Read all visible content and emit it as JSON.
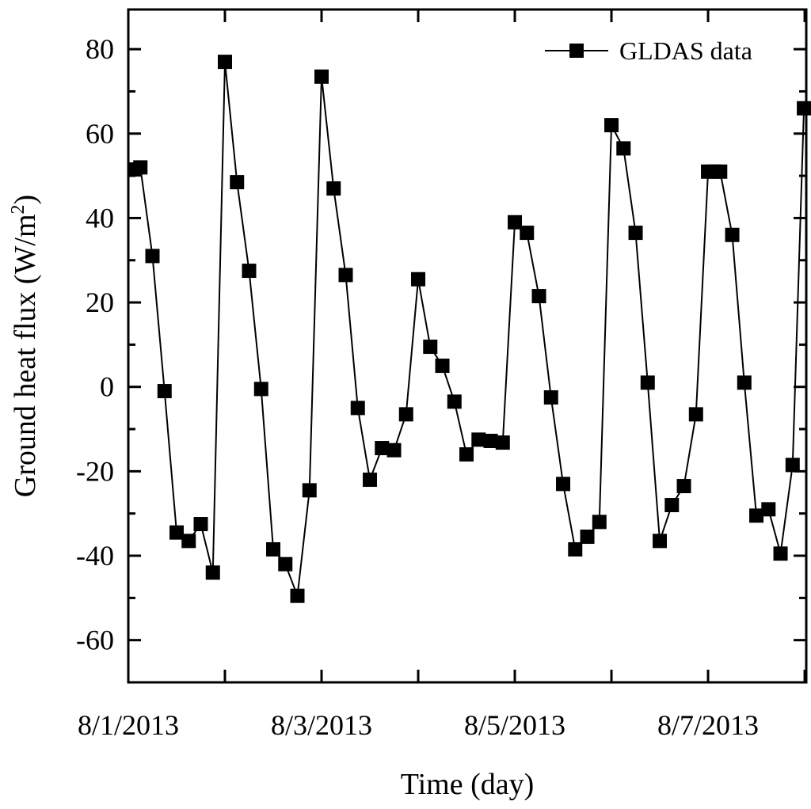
{
  "chart_data": {
    "type": "line",
    "xlabel": "Time (day)",
    "ylabel": {
      "text": "Ground heat flux (W/m",
      "sup": "2",
      "end": ")"
    },
    "x": [
      0.066,
      0.125,
      0.25,
      0.375,
      0.5,
      0.625,
      0.75,
      0.875,
      1.0,
      1.125,
      1.25,
      1.375,
      1.5,
      1.625,
      1.75,
      1.875,
      2.0,
      2.125,
      2.25,
      2.375,
      2.5,
      2.625,
      2.75,
      2.875,
      3.0,
      3.125,
      3.25,
      3.375,
      3.5,
      3.625,
      3.75,
      3.875,
      4.0,
      4.125,
      4.25,
      4.375,
      4.5,
      4.625,
      4.75,
      4.875,
      5.0,
      5.125,
      5.25,
      5.375,
      5.5,
      5.625,
      5.75,
      5.875,
      6.0,
      6.066,
      6.125,
      6.25,
      6.375,
      6.5,
      6.625,
      6.75,
      6.875,
      6.992
    ],
    "series": [
      {
        "name": "GLDAS data",
        "color": "#000000",
        "values": [
          51.5,
          52,
          31,
          -1,
          -34.5,
          -36.5,
          -32.5,
          -44,
          77,
          48.5,
          27.5,
          -0.5,
          -38.5,
          -42,
          -49.5,
          -24.5,
          73.5,
          47,
          26.5,
          -5,
          -22,
          -14.5,
          -15,
          -6.5,
          25.5,
          9.5,
          5,
          -3.5,
          -16,
          -12.5,
          -12.8,
          -13.2,
          39,
          36.5,
          21.5,
          -2.5,
          -23,
          -38.5,
          -35.5,
          -32,
          62,
          56.5,
          36.5,
          1,
          -36.5,
          -28,
          -23.5,
          -6.5,
          51,
          51,
          51,
          36,
          1,
          -30.5,
          -29,
          -39.5,
          -18.5,
          66
        ]
      }
    ],
    "xlim": [
      0,
      7.016
    ],
    "xticks": [
      {
        "value": 0,
        "label": "8/1/2013"
      },
      {
        "value": 2,
        "label": "8/3/2013"
      },
      {
        "value": 4,
        "label": "8/5/2013"
      },
      {
        "value": 6,
        "label": "8/7/2013"
      }
    ],
    "xminor_ticks": [
      1,
      3,
      5,
      7
    ],
    "ylim": [
      -70,
      89.4
    ],
    "yticks": [
      -60,
      -40,
      -20,
      0,
      20,
      40,
      60,
      80
    ],
    "yminor_ticks": [
      -50,
      -30,
      -10,
      10,
      30,
      50,
      70
    ],
    "legend": "upper right"
  }
}
